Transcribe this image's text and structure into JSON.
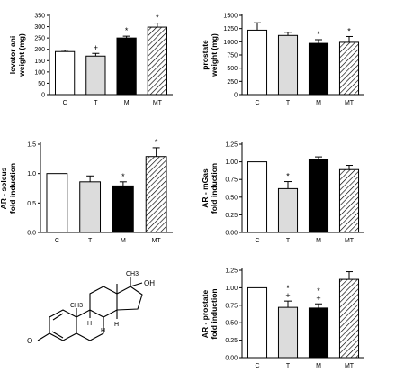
{
  "chart_data": [
    {
      "id": "levator",
      "type": "bar",
      "ylabel_lines": [
        "levator ani",
        "weight (mg)"
      ],
      "categories": [
        "C",
        "T",
        "M",
        "MT"
      ],
      "values": [
        190,
        170,
        250,
        298
      ],
      "errors": [
        6,
        12,
        8,
        18
      ],
      "annotations": [
        "",
        "+",
        "*",
        "*"
      ],
      "ylim": [
        0,
        350
      ],
      "yticks": [
        0,
        50,
        100,
        150,
        200,
        250,
        300,
        350
      ],
      "ytick_labels": [
        "0",
        "50",
        "100",
        "150",
        "200",
        "250",
        "300",
        "350"
      ]
    },
    {
      "id": "prostate",
      "type": "bar",
      "ylabel_lines": [
        "prostate",
        "weight (mg)"
      ],
      "categories": [
        "C",
        "T",
        "M",
        "MT"
      ],
      "values": [
        1220,
        1120,
        970,
        990
      ],
      "errors": [
        140,
        60,
        70,
        110
      ],
      "annotations": [
        "",
        "",
        "*",
        "*"
      ],
      "ylim": [
        0,
        1500
      ],
      "yticks": [
        0,
        250,
        500,
        750,
        1000,
        1250,
        1500
      ],
      "ytick_labels": [
        "0",
        "250",
        "500",
        "750",
        "1000",
        "1250",
        "1500"
      ]
    },
    {
      "id": "soleus",
      "type": "bar",
      "ylabel_lines": [
        "AR - soleus",
        "fold induction"
      ],
      "categories": [
        "C",
        "T",
        "M",
        "MT"
      ],
      "values": [
        1.0,
        0.86,
        0.79,
        1.29
      ],
      "errors": [
        0,
        0.1,
        0.07,
        0.15
      ],
      "annotations": [
        "",
        "",
        "*",
        "*"
      ],
      "ylim": [
        0,
        1.5
      ],
      "yticks": [
        0,
        0.5,
        1.0,
        1.5
      ],
      "ytick_labels": [
        "0.0",
        "0.5",
        "1.0",
        "1.5"
      ]
    },
    {
      "id": "mgas",
      "type": "bar",
      "ylabel_lines": [
        "AR - mGas",
        "fold induction"
      ],
      "categories": [
        "C",
        "T",
        "M",
        "MT"
      ],
      "values": [
        1.0,
        0.62,
        1.03,
        0.89
      ],
      "errors": [
        0,
        0.1,
        0.04,
        0.06
      ],
      "annotations": [
        "",
        "*",
        "",
        ""
      ],
      "ylim": [
        0,
        1.25
      ],
      "yticks": [
        0,
        0.25,
        0.5,
        0.75,
        1.0,
        1.25
      ],
      "ytick_labels": [
        "0.00",
        "0.25",
        "0.50",
        "0.75",
        "1.00",
        "1.25"
      ]
    },
    {
      "id": "arprostate",
      "type": "bar",
      "ylabel_lines": [
        "AR - prostate",
        "fold induction"
      ],
      "categories": [
        "C",
        "T",
        "M",
        "MT"
      ],
      "values": [
        1.0,
        0.72,
        0.71,
        1.12
      ],
      "errors": [
        0,
        0.09,
        0.06,
        0.11
      ],
      "annotations": [
        "",
        "*\n+",
        "*\n+",
        ""
      ],
      "ylim": [
        0,
        1.25
      ],
      "yticks": [
        0,
        0.25,
        0.5,
        0.75,
        1.0,
        1.25
      ],
      "ytick_labels": [
        "0.00",
        "0.25",
        "0.50",
        "0.75",
        "1.00",
        "1.25"
      ]
    }
  ],
  "bar_styles": [
    "white",
    "lightgray",
    "black",
    "hatched"
  ],
  "colors": {
    "lightgray": "#dcdcdc",
    "black": "#000000",
    "white": "#ffffff"
  },
  "molecule": {
    "labels": [
      "O",
      "OH",
      "CH3",
      "CH3",
      "H",
      "H",
      "H"
    ]
  }
}
